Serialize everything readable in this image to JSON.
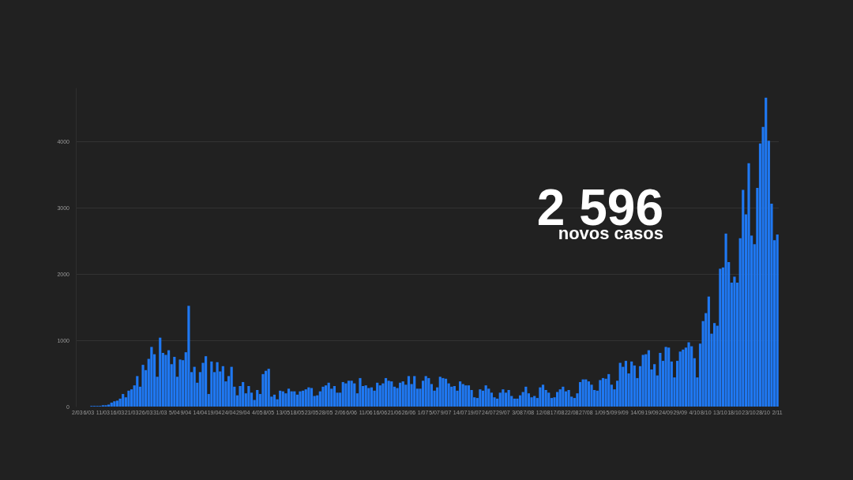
{
  "chart_data": {
    "type": "bar",
    "categories": [
      "2/03",
      null,
      null,
      null,
      "6/03",
      null,
      null,
      null,
      null,
      "11/03",
      null,
      null,
      null,
      null,
      "16/03",
      null,
      null,
      null,
      null,
      "21/03",
      null,
      null,
      null,
      null,
      "26/03",
      null,
      null,
      null,
      null,
      "31/03",
      null,
      null,
      null,
      null,
      "5/04",
      null,
      null,
      null,
      "9/04",
      null,
      null,
      null,
      null,
      "14/04",
      null,
      null,
      null,
      null,
      "19/04",
      null,
      null,
      null,
      null,
      "24/04",
      null,
      null,
      null,
      null,
      "29/04",
      null,
      null,
      null,
      null,
      "4/05",
      null,
      null,
      null,
      "8/05",
      null,
      null,
      null,
      null,
      "13/05",
      null,
      null,
      null,
      null,
      "18/05",
      null,
      null,
      null,
      null,
      "23/05",
      null,
      null,
      null,
      null,
      "28/05",
      null,
      null,
      null,
      null,
      "2/06",
      null,
      null,
      null,
      "6/06",
      null,
      null,
      null,
      null,
      "11/06",
      null,
      null,
      null,
      null,
      "16/06",
      null,
      null,
      null,
      null,
      "21/06",
      null,
      null,
      null,
      null,
      "26/06",
      null,
      null,
      null,
      null,
      "1/07",
      null,
      null,
      null,
      "5/07",
      null,
      null,
      null,
      "9/07",
      null,
      null,
      null,
      null,
      "14/07",
      null,
      null,
      null,
      null,
      "19/07",
      null,
      null,
      null,
      null,
      "24/07",
      null,
      null,
      null,
      null,
      "29/07",
      null,
      null,
      null,
      null,
      "3/08",
      null,
      null,
      null,
      "7/08",
      null,
      null,
      null,
      null,
      "12/08",
      null,
      null,
      null,
      null,
      "17/08",
      null,
      null,
      null,
      null,
      "22/08",
      null,
      null,
      null,
      null,
      "27/08",
      null,
      null,
      null,
      null,
      "1/09",
      null,
      null,
      null,
      "5/09",
      null,
      null,
      null,
      "9/09",
      null,
      null,
      null,
      null,
      "14/09",
      null,
      null,
      null,
      null,
      "19/09",
      null,
      null,
      null,
      null,
      "24/09",
      null,
      null,
      null,
      null,
      "29/09",
      null,
      null,
      null,
      null,
      "4/10",
      null,
      null,
      null,
      "8/10",
      null,
      null,
      null,
      null,
      "13/10",
      null,
      null,
      null,
      null,
      "18/10",
      null,
      null,
      null,
      null,
      "23/10",
      null,
      null,
      null,
      null,
      "28/10",
      null,
      null,
      null,
      null,
      "2/11"
    ],
    "values": [
      0,
      0,
      0,
      0,
      0,
      10,
      10,
      10,
      10,
      20,
      20,
      30,
      60,
      80,
      90,
      120,
      190,
      140,
      240,
      260,
      320,
      460,
      300,
      630,
      550,
      720,
      900,
      790,
      450,
      1040,
      810,
      780,
      850,
      640,
      750,
      450,
      710,
      700,
      820,
      1520,
      520,
      600,
      360,
      520,
      660,
      760,
      190,
      680,
      520,
      670,
      530,
      610,
      380,
      460,
      600,
      300,
      170,
      310,
      370,
      200,
      310,
      210,
      100,
      250,
      190,
      490,
      540,
      570,
      150,
      180,
      110,
      240,
      230,
      200,
      270,
      230,
      230,
      180,
      230,
      240,
      260,
      290,
      280,
      160,
      170,
      230,
      300,
      320,
      360,
      270,
      310,
      210,
      210,
      370,
      350,
      390,
      390,
      350,
      200,
      430,
      310,
      320,
      280,
      290,
      240,
      360,
      320,
      350,
      430,
      390,
      380,
      300,
      280,
      360,
      380,
      330,
      460,
      340,
      460,
      270,
      270,
      390,
      460,
      430,
      340,
      240,
      290,
      450,
      430,
      420,
      350,
      300,
      310,
      240,
      380,
      340,
      320,
      320,
      250,
      140,
      130,
      260,
      240,
      320,
      270,
      210,
      140,
      120,
      210,
      260,
      210,
      250,
      160,
      120,
      120,
      170,
      220,
      300,
      200,
      140,
      160,
      130,
      290,
      330,
      250,
      210,
      130,
      140,
      220,
      260,
      300,
      230,
      250,
      150,
      130,
      200,
      370,
      410,
      410,
      380,
      330,
      250,
      240,
      400,
      430,
      420,
      490,
      330,
      260,
      390,
      660,
      600,
      690,
      500,
      680,
      620,
      430,
      610,
      780,
      790,
      850,
      560,
      640,
      470,
      810,
      690,
      900,
      890,
      680,
      440,
      690,
      830,
      860,
      890,
      970,
      910,
      730,
      440,
      950,
      1290,
      1410,
      1660,
      1100,
      1260,
      1220,
      2080,
      2100,
      2610,
      2180,
      1870,
      1960,
      1870,
      2540,
      3270,
      2900,
      3670,
      2580,
      2450,
      3300,
      3970,
      4220,
      4660,
      4010,
      3060,
      2510,
      2596
    ],
    "color": "#1f78f2",
    "ylim": [
      0,
      4800
    ],
    "yticks": [
      0,
      1000,
      2000,
      3000,
      4000
    ],
    "grid": "y",
    "annotations": [
      "2 596",
      "novos casos"
    ]
  }
}
